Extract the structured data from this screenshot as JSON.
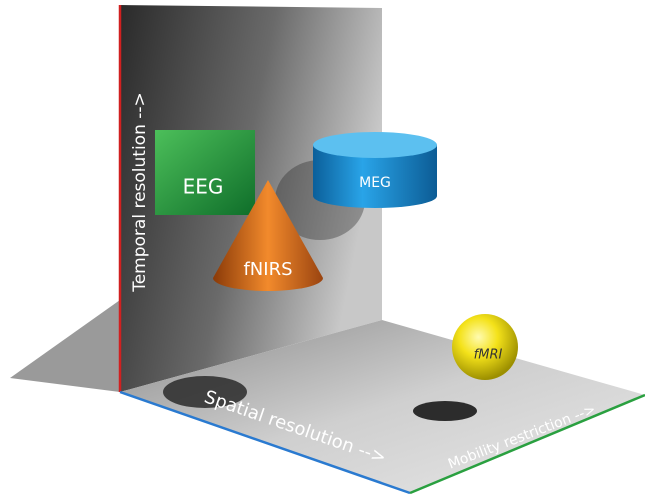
{
  "axes": {
    "vertical": "Temporal resolution -->",
    "depth": "Spatial resolution -->",
    "horizontal": "Mobility restriction -->"
  },
  "nodes": [
    {
      "label": "EEG"
    },
    {
      "label": "MEG"
    },
    {
      "label": "fNIRS"
    },
    {
      "label": "fMRI"
    }
  ]
}
